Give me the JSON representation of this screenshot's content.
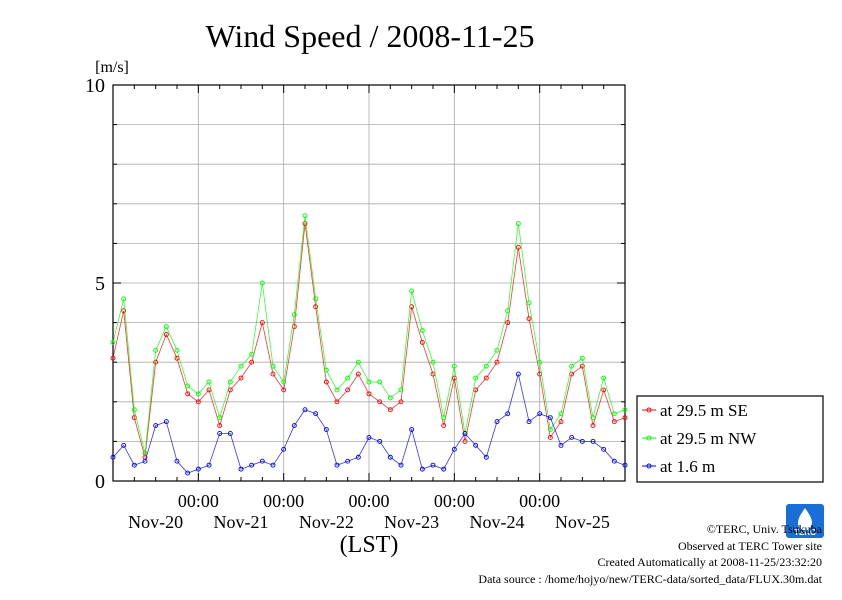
{
  "chart_data": {
    "type": "line",
    "title": "Wind Speed / 2008-11-25",
    "ylabel": "[m/s]",
    "xlabel": "(LST)",
    "ylim": [
      0,
      10
    ],
    "yticks": [
      0,
      5,
      10
    ],
    "grid": true,
    "legend_position": "right",
    "x_range_hours": [
      0,
      144
    ],
    "time_tick_label": "00:00",
    "day_ticks_hours": [
      24,
      48,
      72,
      96,
      120
    ],
    "day_labels": [
      "Nov-20",
      "Nov-21",
      "Nov-22",
      "Nov-23",
      "Nov-24",
      "Nov-25"
    ],
    "day_label_centers_hours": [
      12,
      36,
      60,
      84,
      108,
      132
    ],
    "series": [
      {
        "name": "at 29.5 m SE",
        "color": "#ff0000",
        "x": [
          0,
          3,
          6,
          9,
          12,
          15,
          18,
          21,
          24,
          27,
          30,
          33,
          36,
          39,
          42,
          45,
          48,
          51,
          54,
          57,
          60,
          63,
          66,
          69,
          72,
          75,
          78,
          81,
          84,
          87,
          90,
          93,
          96,
          99,
          102,
          105,
          108,
          111,
          114,
          117,
          120,
          123,
          126,
          129,
          132,
          135,
          138,
          141,
          144
        ],
        "values": [
          3.1,
          4.3,
          1.6,
          0.6,
          3.0,
          3.7,
          3.1,
          2.2,
          2.0,
          2.3,
          1.4,
          2.3,
          2.6,
          3.0,
          4.0,
          2.7,
          2.3,
          3.9,
          6.5,
          4.4,
          2.5,
          2.0,
          2.3,
          2.7,
          2.2,
          2.0,
          1.8,
          2.0,
          4.4,
          3.5,
          2.7,
          1.4,
          2.6,
          1.0,
          2.3,
          2.6,
          3.0,
          4.0,
          5.9,
          4.1,
          2.7,
          1.1,
          1.5,
          2.7,
          2.9,
          1.4,
          2.3,
          1.5,
          1.6
        ]
      },
      {
        "name": "at 29.5 m NW",
        "color": "#00ff00",
        "x": [
          0,
          3,
          6,
          9,
          12,
          15,
          18,
          21,
          24,
          27,
          30,
          33,
          36,
          39,
          42,
          45,
          48,
          51,
          54,
          57,
          60,
          63,
          66,
          69,
          72,
          75,
          78,
          81,
          84,
          87,
          90,
          93,
          96,
          99,
          102,
          105,
          108,
          111,
          114,
          117,
          120,
          123,
          126,
          129,
          132,
          135,
          138,
          141,
          144
        ],
        "values": [
          3.5,
          4.6,
          1.8,
          0.7,
          3.3,
          3.9,
          3.3,
          2.4,
          2.2,
          2.5,
          1.6,
          2.5,
          2.9,
          3.2,
          5.0,
          2.9,
          2.5,
          4.2,
          6.7,
          4.6,
          2.8,
          2.3,
          2.6,
          3.0,
          2.5,
          2.5,
          2.1,
          2.3,
          4.8,
          3.8,
          3.0,
          1.6,
          2.9,
          1.2,
          2.6,
          2.9,
          3.3,
          4.3,
          6.5,
          4.5,
          3.0,
          1.3,
          1.7,
          2.9,
          3.1,
          1.6,
          2.6,
          1.7,
          1.8
        ]
      },
      {
        "name": "at 1.6 m",
        "color": "#0000ff",
        "x": [
          0,
          3,
          6,
          9,
          12,
          15,
          18,
          21,
          24,
          27,
          30,
          33,
          36,
          39,
          42,
          45,
          48,
          51,
          54,
          57,
          60,
          63,
          66,
          69,
          72,
          75,
          78,
          81,
          84,
          87,
          90,
          93,
          96,
          99,
          102,
          105,
          108,
          111,
          114,
          117,
          120,
          123,
          126,
          129,
          132,
          135,
          138,
          141,
          144
        ],
        "values": [
          0.6,
          0.9,
          0.4,
          0.5,
          1.4,
          1.5,
          0.5,
          0.2,
          0.3,
          0.4,
          1.2,
          1.2,
          0.3,
          0.4,
          0.5,
          0.4,
          0.8,
          1.4,
          1.8,
          1.7,
          1.3,
          0.4,
          0.5,
          0.6,
          1.1,
          1.0,
          0.6,
          0.4,
          1.3,
          0.3,
          0.4,
          0.3,
          0.8,
          1.2,
          0.9,
          0.6,
          1.5,
          1.7,
          2.7,
          1.5,
          1.7,
          1.6,
          0.9,
          1.1,
          1.0,
          1.0,
          0.8,
          0.5,
          0.4
        ]
      }
    ]
  },
  "footer": {
    "line1": "©TERC, Univ. Tsukuba",
    "line2": "Observed at TERC Tower site",
    "line3": "Created Automatically at 2008-11-25/23:32:20",
    "line4": "Data source : /home/hojyo/new/TERC-data/sorted_data/FLUX.30m.dat"
  },
  "logo": {
    "text": "TERC",
    "color": "#1a6fd6"
  }
}
